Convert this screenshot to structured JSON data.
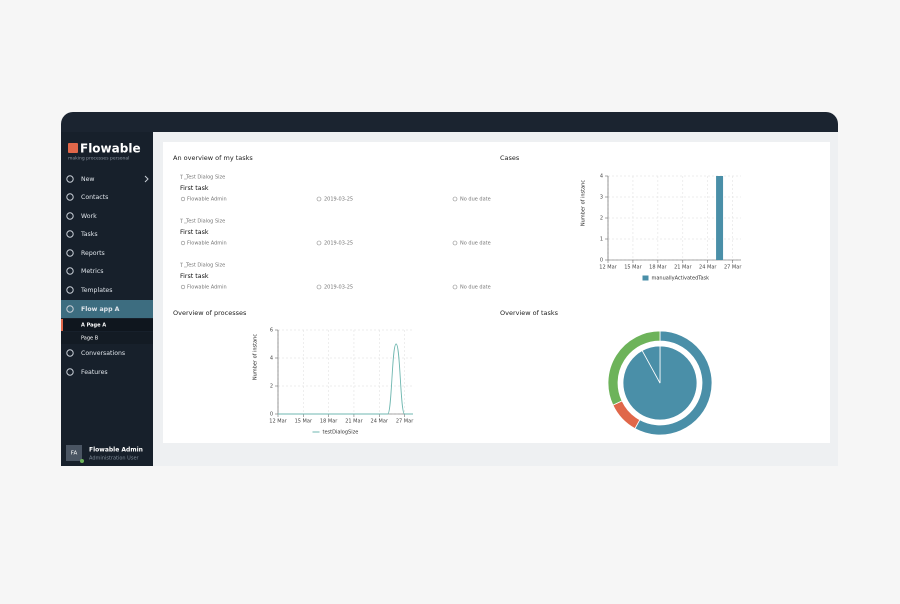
{
  "sidebar": {
    "logo": "Flowable",
    "tagline": "making processes personal",
    "nav": [
      {
        "label": "New"
      },
      {
        "label": "Contacts"
      },
      {
        "label": "Work"
      },
      {
        "label": "Tasks"
      },
      {
        "label": "Reports"
      },
      {
        "label": "Metrics"
      },
      {
        "label": "Templates"
      },
      {
        "label": "Flow app A",
        "active": true,
        "subpages": [
          "A Page A",
          "Page B"
        ]
      },
      {
        "label": "Conversations"
      },
      {
        "label": "Features"
      }
    ],
    "user": {
      "initials": "FA",
      "name": "Flowable Admin",
      "role": "Administration User"
    }
  },
  "tasks": {
    "title": "An overview of my tasks",
    "items": [
      {
        "process": "Test Dialog Size",
        "name": "First task",
        "assignee": "Flowable Admin",
        "created": "2019-03-25",
        "due": "No due date"
      },
      {
        "process": "Test Dialog Size",
        "name": "First task",
        "assignee": "Flowable Admin",
        "created": "2019-03-25",
        "due": "No due date"
      },
      {
        "process": "Test Dialog Size",
        "name": "First task",
        "assignee": "Flowable Admin",
        "created": "2019-03-25",
        "due": "No due date"
      }
    ]
  },
  "chart_data": [
    {
      "type": "bar",
      "title": "Cases",
      "y_label": "Number of instanc",
      "x": [
        25
      ],
      "series": [
        {
          "name": "manuallyActivatedTask",
          "color": "#4a8fa8",
          "values": [
            4
          ]
        }
      ],
      "xlim": [
        12,
        28
      ],
      "xticks": [
        {
          "value": 12,
          "label": "12 Mar"
        },
        {
          "value": 15,
          "label": "15 Mar"
        },
        {
          "value": 18,
          "label": "18 Mar"
        },
        {
          "value": 21,
          "label": "21 Mar"
        },
        {
          "value": 24,
          "label": "24 Mar"
        },
        {
          "value": 27,
          "label": "27 Mar"
        }
      ],
      "ylim": [
        0,
        4
      ],
      "yticks": [
        0,
        1,
        2,
        3,
        4
      ],
      "grid": true
    },
    {
      "type": "line",
      "title": "Overview of processes",
      "y_label": "Number of instanc",
      "x": [
        12,
        25,
        26,
        27,
        28
      ],
      "series": [
        {
          "name": "testDialogSize",
          "color": "#6fb7b0",
          "values": [
            0,
            0,
            5,
            0,
            0
          ]
        }
      ],
      "xlim": [
        12,
        28
      ],
      "xticks": [
        {
          "value": 12,
          "label": "12 Mar"
        },
        {
          "value": 15,
          "label": "15 Mar"
        },
        {
          "value": 18,
          "label": "18 Mar"
        },
        {
          "value": 21,
          "label": "21 Mar"
        },
        {
          "value": 24,
          "label": "24 Mar"
        },
        {
          "value": 27,
          "label": "27 Mar"
        }
      ],
      "ylim": [
        0,
        6
      ],
      "yticks": [
        0,
        2,
        4,
        6
      ],
      "grid": true
    },
    {
      "type": "pie",
      "title": "Overview of tasks",
      "series": [
        {
          "values": [
            92,
            8
          ],
          "colors": [
            "#4a8fa8",
            "#4a8fa8"
          ]
        },
        {
          "values": [
            58,
            10,
            32
          ],
          "colors": [
            "#4a8fa8",
            "#e0674a",
            "#6db35a"
          ]
        }
      ]
    }
  ]
}
